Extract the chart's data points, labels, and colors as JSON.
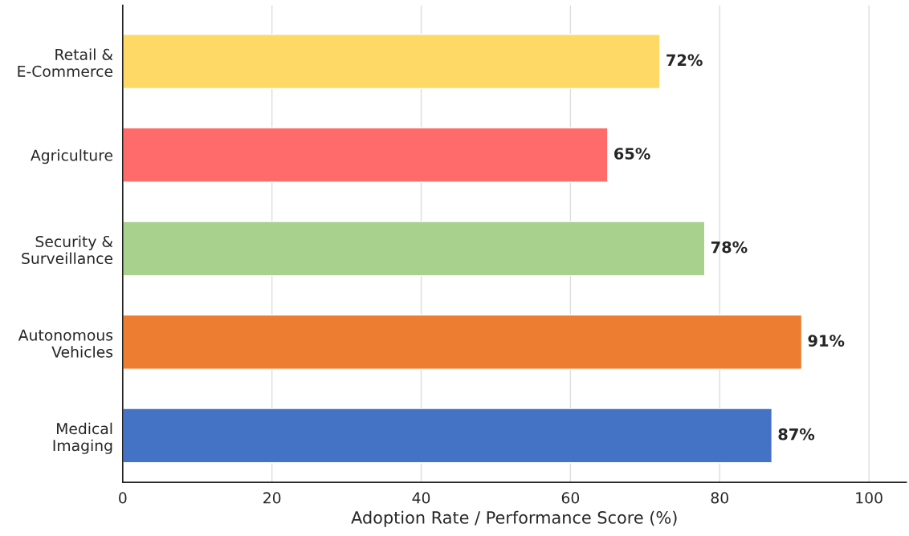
{
  "chart_data": {
    "type": "bar",
    "orientation": "horizontal",
    "categories": [
      "Retail &\nE-Commerce",
      "Agriculture",
      "Security &\nSurveillance",
      "Autonomous\nVehicles",
      "Medical\nImaging"
    ],
    "values": [
      72,
      65,
      78,
      91,
      87
    ],
    "colors": [
      "#ffd966",
      "#ff6b6b",
      "#a9d18e",
      "#ed7d31",
      "#4472c4"
    ],
    "value_labels": [
      "72%",
      "65%",
      "78%",
      "91%",
      "87%"
    ],
    "xlabel": "Adoption Rate / Performance Score (%)",
    "xlim": [
      0,
      105
    ],
    "xticks": [
      0,
      20,
      40,
      60,
      80,
      100
    ],
    "grid": "x",
    "legend": false
  }
}
